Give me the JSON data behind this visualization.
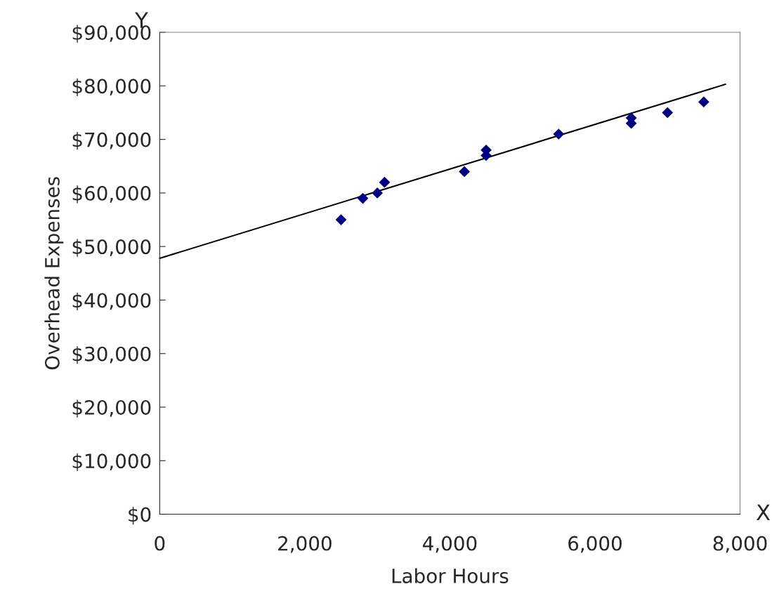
{
  "chart_data": {
    "type": "scatter",
    "xlabel": "Labor Hours",
    "ylabel": "Overhead Expenses",
    "annotations": [
      "Y",
      "X"
    ],
    "xlim": [
      0,
      8000
    ],
    "xticks": [
      {
        "value": 0,
        "label": "0"
      },
      {
        "value": 2000,
        "label": "2,000"
      },
      {
        "value": 4000,
        "label": "4,000"
      },
      {
        "value": 6000,
        "label": "6,000"
      },
      {
        "value": 8000,
        "label": "8,000"
      }
    ],
    "ylim": [
      0,
      90000
    ],
    "yticks": [
      {
        "value": 0,
        "label": "$0"
      },
      {
        "value": 10000,
        "label": "$10,000"
      },
      {
        "value": 20000,
        "label": "$20,000"
      },
      {
        "value": 30000,
        "label": "$30,000"
      },
      {
        "value": 40000,
        "label": "$40,000"
      },
      {
        "value": 50000,
        "label": "$50,000"
      },
      {
        "value": 60000,
        "label": "$60,000"
      },
      {
        "value": 70000,
        "label": "$70,000"
      },
      {
        "value": 80000,
        "label": "$80,000"
      },
      {
        "value": 90000,
        "label": "$90,000"
      }
    ],
    "grid": false,
    "series": [
      {
        "type": "scatter",
        "color": "#000080",
        "marker": "diamond",
        "x": [
          2500,
          2800,
          3000,
          3100,
          4200,
          4500,
          4500,
          5500,
          6500,
          6500,
          7000,
          7500
        ],
        "values": [
          55000,
          59000,
          60000,
          62000,
          64000,
          68000,
          67000,
          71000,
          74000,
          73000,
          75000,
          77000
        ]
      },
      {
        "type": "line",
        "color": "#000000",
        "marker": "none",
        "line_style": "solid",
        "x": [
          0,
          7800
        ],
        "values": [
          47800,
          80300
        ]
      }
    ]
  }
}
